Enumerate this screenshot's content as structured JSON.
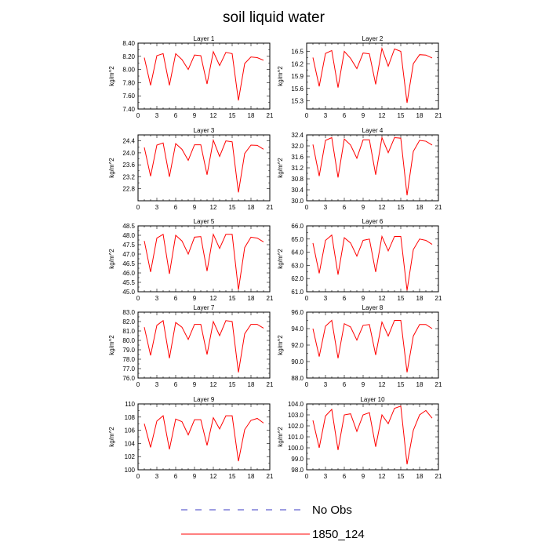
{
  "title": "soil liquid water",
  "legend": [
    {
      "label": "No Obs",
      "color": "#3b3bc4",
      "dash": true
    },
    {
      "label": "1850_124",
      "color": "#ff0000",
      "dash": false
    }
  ],
  "chart_data": [
    {
      "type": "line",
      "title": "Layer 1",
      "ylabel": "kg/m^2",
      "xlim": [
        0,
        21
      ],
      "ylim": [
        7.4,
        8.4
      ],
      "xticks": [
        "0",
        "3",
        "6",
        "9",
        "12",
        "15",
        "18",
        "21"
      ],
      "yticks": [
        {
          "v": 7.4,
          "label": "7.40"
        },
        {
          "v": 7.6,
          "label": "7.60"
        },
        {
          "v": 7.8,
          "label": "7.80"
        },
        {
          "v": 8.0,
          "label": "8.00"
        },
        {
          "v": 8.2,
          "label": "8.20"
        },
        {
          "v": 8.4,
          "label": "8.40"
        }
      ],
      "x": [
        1,
        2,
        3,
        4,
        5,
        6,
        7,
        8,
        9,
        10,
        11,
        12,
        13,
        14,
        15,
        16,
        17,
        18,
        19,
        20
      ],
      "series": [
        {
          "name": "1850_124",
          "values": [
            8.18,
            7.76,
            8.21,
            8.24,
            7.76,
            8.24,
            8.15,
            8.0,
            8.22,
            8.21,
            7.78,
            8.27,
            8.06,
            8.26,
            8.24,
            7.53,
            8.09,
            8.19,
            8.18,
            8.14
          ]
        }
      ]
    },
    {
      "type": "line",
      "title": "Layer 2",
      "ylabel": "kg/m^2",
      "xlim": [
        0,
        21
      ],
      "ylim": [
        15.1,
        16.7
      ],
      "xticks": [
        "0",
        "3",
        "6",
        "9",
        "12",
        "15",
        "18",
        "21"
      ],
      "yticks": [
        {
          "v": 15.3,
          "label": "15.3"
        },
        {
          "v": 15.6,
          "label": "15.6"
        },
        {
          "v": 15.9,
          "label": "15.9"
        },
        {
          "v": 16.2,
          "label": "16.2"
        },
        {
          "v": 16.5,
          "label": "16.5"
        }
      ],
      "x": [
        1,
        2,
        3,
        4,
        5,
        6,
        7,
        8,
        9,
        10,
        11,
        12,
        13,
        14,
        15,
        16,
        17,
        18,
        19,
        20
      ],
      "series": [
        {
          "name": "1850_124",
          "values": [
            16.35,
            15.65,
            16.45,
            16.52,
            15.62,
            16.5,
            16.33,
            16.08,
            16.46,
            16.44,
            15.7,
            16.57,
            16.14,
            16.56,
            16.5,
            15.25,
            16.2,
            16.42,
            16.41,
            16.34
          ]
        }
      ]
    },
    {
      "type": "line",
      "title": "Layer 3",
      "ylabel": "kg/m^2",
      "xlim": [
        0,
        21
      ],
      "ylim": [
        22.4,
        24.6
      ],
      "xticks": [
        "0",
        "3",
        "6",
        "9",
        "12",
        "15",
        "18",
        "21"
      ],
      "yticks": [
        {
          "v": 22.8,
          "label": "22.8"
        },
        {
          "v": 23.2,
          "label": "23.2"
        },
        {
          "v": 23.6,
          "label": "23.6"
        },
        {
          "v": 24.0,
          "label": "24.0"
        },
        {
          "v": 24.4,
          "label": "24.4"
        }
      ],
      "x": [
        1,
        2,
        3,
        4,
        5,
        6,
        7,
        8,
        9,
        10,
        11,
        12,
        13,
        14,
        15,
        16,
        17,
        18,
        19,
        20
      ],
      "series": [
        {
          "name": "1850_124",
          "values": [
            24.18,
            23.22,
            24.26,
            24.33,
            23.2,
            24.31,
            24.12,
            23.75,
            24.27,
            24.27,
            23.27,
            24.42,
            23.88,
            24.4,
            24.37,
            22.68,
            23.98,
            24.26,
            24.25,
            24.12
          ]
        }
      ]
    },
    {
      "type": "line",
      "title": "Layer 4",
      "ylabel": "kg/m^2",
      "xlim": [
        0,
        21
      ],
      "ylim": [
        30.0,
        32.4
      ],
      "xticks": [
        "0",
        "3",
        "6",
        "9",
        "12",
        "15",
        "18",
        "21"
      ],
      "yticks": [
        {
          "v": 30.0,
          "label": "30.0"
        },
        {
          "v": 30.4,
          "label": "30.4"
        },
        {
          "v": 30.8,
          "label": "30.8"
        },
        {
          "v": 31.2,
          "label": "31.2"
        },
        {
          "v": 31.6,
          "label": "31.6"
        },
        {
          "v": 32.0,
          "label": "32.0"
        },
        {
          "v": 32.4,
          "label": "32.4"
        }
      ],
      "x": [
        1,
        2,
        3,
        4,
        5,
        6,
        7,
        8,
        9,
        10,
        11,
        12,
        13,
        14,
        15,
        16,
        17,
        18,
        19,
        20
      ],
      "series": [
        {
          "name": "1850_124",
          "values": [
            32.05,
            30.9,
            32.2,
            32.3,
            30.85,
            32.25,
            32.03,
            31.55,
            32.22,
            32.22,
            30.95,
            32.3,
            31.75,
            32.3,
            32.28,
            30.2,
            31.8,
            32.2,
            32.17,
            32.03
          ]
        }
      ]
    },
    {
      "type": "line",
      "title": "Layer 5",
      "ylabel": "kg/m^2",
      "xlim": [
        0,
        21
      ],
      "ylim": [
        45.0,
        48.5
      ],
      "xticks": [
        "0",
        "3",
        "6",
        "9",
        "12",
        "15",
        "18",
        "21"
      ],
      "yticks": [
        {
          "v": 45.0,
          "label": "45.0"
        },
        {
          "v": 45.5,
          "label": "45.5"
        },
        {
          "v": 46.0,
          "label": "46.0"
        },
        {
          "v": 46.5,
          "label": "46.5"
        },
        {
          "v": 47.0,
          "label": "47.0"
        },
        {
          "v": 47.5,
          "label": "47.5"
        },
        {
          "v": 48.0,
          "label": "48.0"
        },
        {
          "v": 48.5,
          "label": "48.5"
        }
      ],
      "x": [
        1,
        2,
        3,
        4,
        5,
        6,
        7,
        8,
        9,
        10,
        11,
        12,
        13,
        14,
        15,
        16,
        17,
        18,
        19,
        20
      ],
      "series": [
        {
          "name": "1850_124",
          "values": [
            47.7,
            46.05,
            47.85,
            48.05,
            45.95,
            48.0,
            47.7,
            47.0,
            47.9,
            47.93,
            46.1,
            48.05,
            47.3,
            48.05,
            48.05,
            45.1,
            47.35,
            47.9,
            47.85,
            47.65
          ]
        }
      ]
    },
    {
      "type": "line",
      "title": "Layer 6",
      "ylabel": "kg/m^2",
      "xlim": [
        0,
        21
      ],
      "ylim": [
        61.0,
        66.0
      ],
      "xticks": [
        "0",
        "3",
        "6",
        "9",
        "12",
        "15",
        "18",
        "21"
      ],
      "yticks": [
        {
          "v": 61.0,
          "label": "61.0"
        },
        {
          "v": 62.0,
          "label": "62.0"
        },
        {
          "v": 63.0,
          "label": "63.0"
        },
        {
          "v": 64.0,
          "label": "64.0"
        },
        {
          "v": 65.0,
          "label": "65.0"
        },
        {
          "v": 66.0,
          "label": "66.0"
        }
      ],
      "x": [
        1,
        2,
        3,
        4,
        5,
        6,
        7,
        8,
        9,
        10,
        11,
        12,
        13,
        14,
        15,
        16,
        17,
        18,
        19,
        20
      ],
      "series": [
        {
          "name": "1850_124",
          "values": [
            64.7,
            62.4,
            64.9,
            65.3,
            62.3,
            65.1,
            64.7,
            63.7,
            64.9,
            65.0,
            62.5,
            65.2,
            64.1,
            65.2,
            65.2,
            61.1,
            64.2,
            65.0,
            64.9,
            64.6
          ]
        }
      ]
    },
    {
      "type": "line",
      "title": "Layer 7",
      "ylabel": "kg/m^2",
      "xlim": [
        0,
        21
      ],
      "ylim": [
        76.0,
        83.0
      ],
      "xticks": [
        "0",
        "3",
        "6",
        "9",
        "12",
        "15",
        "18",
        "21"
      ],
      "yticks": [
        {
          "v": 76.0,
          "label": "76.0"
        },
        {
          "v": 77.0,
          "label": "77.0"
        },
        {
          "v": 78.0,
          "label": "78.0"
        },
        {
          "v": 79.0,
          "label": "79.0"
        },
        {
          "v": 80.0,
          "label": "80.0"
        },
        {
          "v": 81.0,
          "label": "81.0"
        },
        {
          "v": 82.0,
          "label": "82.0"
        },
        {
          "v": 83.0,
          "label": "83.0"
        }
      ],
      "x": [
        1,
        2,
        3,
        4,
        5,
        6,
        7,
        8,
        9,
        10,
        11,
        12,
        13,
        14,
        15,
        16,
        17,
        18,
        19,
        20
      ],
      "series": [
        {
          "name": "1850_124",
          "values": [
            81.4,
            78.4,
            81.6,
            82.1,
            78.1,
            81.9,
            81.4,
            80.1,
            81.7,
            81.7,
            78.5,
            82.0,
            80.5,
            82.1,
            82.0,
            76.6,
            80.7,
            81.7,
            81.7,
            81.3
          ]
        }
      ]
    },
    {
      "type": "line",
      "title": "Layer 8",
      "ylabel": "kg/m^2",
      "xlim": [
        0,
        21
      ],
      "ylim": [
        88.0,
        96.0
      ],
      "xticks": [
        "0",
        "3",
        "6",
        "9",
        "12",
        "15",
        "18",
        "21"
      ],
      "yticks": [
        {
          "v": 88.0,
          "label": "88.0"
        },
        {
          "v": 90.0,
          "label": "90.0"
        },
        {
          "v": 92.0,
          "label": "92.0"
        },
        {
          "v": 94.0,
          "label": "94.0"
        },
        {
          "v": 96.0,
          "label": "96.0"
        }
      ],
      "x": [
        1,
        2,
        3,
        4,
        5,
        6,
        7,
        8,
        9,
        10,
        11,
        12,
        13,
        14,
        15,
        16,
        17,
        18,
        19,
        20
      ],
      "series": [
        {
          "name": "1850_124",
          "values": [
            94.0,
            90.6,
            94.3,
            95.0,
            90.4,
            94.6,
            94.2,
            92.6,
            94.4,
            94.5,
            90.8,
            94.8,
            93.1,
            95.0,
            95.0,
            88.7,
            93.1,
            94.5,
            94.5,
            94.0
          ]
        }
      ]
    },
    {
      "type": "line",
      "title": "Layer 9",
      "ylabel": "kg/m^2",
      "xlim": [
        0,
        21
      ],
      "ylim": [
        100,
        110
      ],
      "xticks": [
        "0",
        "3",
        "6",
        "9",
        "12",
        "15",
        "18",
        "21"
      ],
      "yticks": [
        {
          "v": 100,
          "label": "100"
        },
        {
          "v": 102,
          "label": "102"
        },
        {
          "v": 104,
          "label": "104"
        },
        {
          "v": 106,
          "label": "106"
        },
        {
          "v": 108,
          "label": "108"
        },
        {
          "v": 110,
          "label": "110"
        }
      ],
      "x": [
        1,
        2,
        3,
        4,
        5,
        6,
        7,
        8,
        9,
        10,
        11,
        12,
        13,
        14,
        15,
        16,
        17,
        18,
        19,
        20
      ],
      "series": [
        {
          "name": "1850_124",
          "values": [
            107.0,
            103.4,
            107.4,
            108.2,
            103.1,
            107.7,
            107.3,
            105.3,
            107.6,
            107.6,
            103.7,
            107.9,
            106.2,
            108.2,
            108.2,
            101.3,
            106.1,
            107.5,
            107.8,
            107.1
          ]
        }
      ]
    },
    {
      "type": "line",
      "title": "Layer 10",
      "ylabel": "kg/m^2",
      "xlim": [
        0,
        21
      ],
      "ylim": [
        98.0,
        104.0
      ],
      "xticks": [
        "0",
        "3",
        "6",
        "9",
        "12",
        "15",
        "18",
        "21"
      ],
      "yticks": [
        {
          "v": 98.0,
          "label": "98.0"
        },
        {
          "v": 99.0,
          "label": "99.0"
        },
        {
          "v": 100.0,
          "label": "100.0"
        },
        {
          "v": 101.0,
          "label": "101.0"
        },
        {
          "v": 102.0,
          "label": "102.0"
        },
        {
          "v": 103.0,
          "label": "103.0"
        },
        {
          "v": 104.0,
          "label": "104.0"
        }
      ],
      "x": [
        1,
        2,
        3,
        4,
        5,
        6,
        7,
        8,
        9,
        10,
        11,
        12,
        13,
        14,
        15,
        16,
        17,
        18,
        19,
        20
      ],
      "series": [
        {
          "name": "1850_124",
          "values": [
            102.5,
            100.0,
            102.9,
            103.5,
            99.8,
            103.0,
            103.1,
            101.5,
            103.0,
            103.2,
            100.1,
            103.0,
            102.2,
            103.6,
            103.8,
            98.5,
            101.6,
            103.0,
            103.4,
            102.7
          ]
        }
      ]
    }
  ]
}
